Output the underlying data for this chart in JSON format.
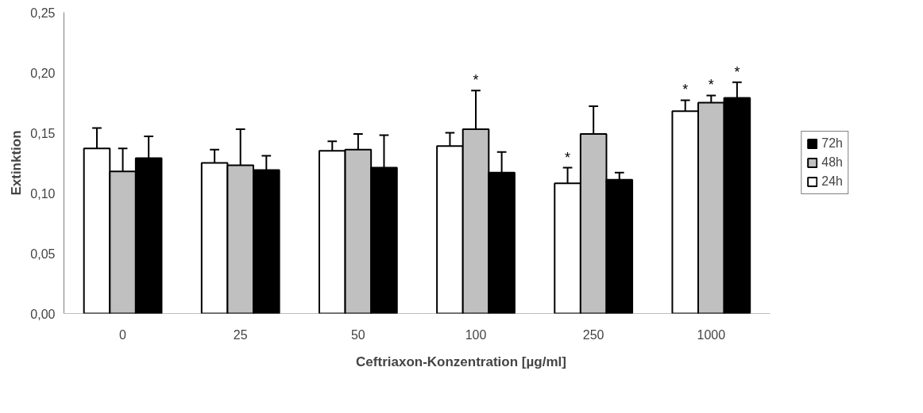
{
  "chart_data": {
    "type": "bar",
    "xlabel": "Ceftriaxon-Konzentration [µg/ml]",
    "ylabel": "Extinktion",
    "categories": [
      "0",
      "25",
      "50",
      "100",
      "250",
      "1000"
    ],
    "series": [
      {
        "name": "24h",
        "color": "#ffffff",
        "values": [
          0.137,
          0.125,
          0.135,
          0.139,
          0.108,
          0.168
        ],
        "errors": [
          [
            0.137,
            0.154
          ],
          [
            0.125,
            0.136
          ],
          [
            0.135,
            0.143
          ],
          [
            0.139,
            0.15
          ],
          [
            0.108,
            0.121
          ],
          [
            0.168,
            0.177
          ]
        ],
        "value_labels": [
          null,
          null,
          null,
          null,
          "*",
          "*"
        ]
      },
      {
        "name": "48h",
        "color": "#c0c0c0",
        "values": [
          0.118,
          0.123,
          0.136,
          0.153,
          0.149,
          0.175
        ],
        "errors": [
          [
            0.118,
            0.137
          ],
          [
            0.123,
            0.153
          ],
          [
            0.136,
            0.149
          ],
          [
            0.153,
            0.185
          ],
          [
            0.149,
            0.172
          ],
          [
            0.175,
            0.181
          ]
        ],
        "value_labels": [
          null,
          null,
          null,
          "*",
          null,
          "*"
        ]
      },
      {
        "name": "72h",
        "color": "#000000",
        "values": [
          0.129,
          0.119,
          0.121,
          0.117,
          0.111,
          0.179
        ],
        "errors": [
          [
            0.129,
            0.147
          ],
          [
            0.119,
            0.131
          ],
          [
            0.121,
            0.148
          ],
          [
            0.117,
            0.134
          ],
          [
            0.111,
            0.117
          ],
          [
            0.179,
            0.192
          ]
        ],
        "value_labels": [
          null,
          null,
          null,
          null,
          null,
          "*"
        ]
      }
    ],
    "ylim": [
      0,
      0.25
    ],
    "yticks": [
      {
        "value": 0,
        "label": "0,00"
      },
      {
        "value": 0.05,
        "label": "0,05"
      },
      {
        "value": 0.1,
        "label": "0,10"
      },
      {
        "value": 0.15,
        "label": "0,15"
      },
      {
        "value": 0.2,
        "label": "0,20"
      },
      {
        "value": 0.25,
        "label": "0,25"
      }
    ],
    "legend": "right",
    "grid": false
  }
}
